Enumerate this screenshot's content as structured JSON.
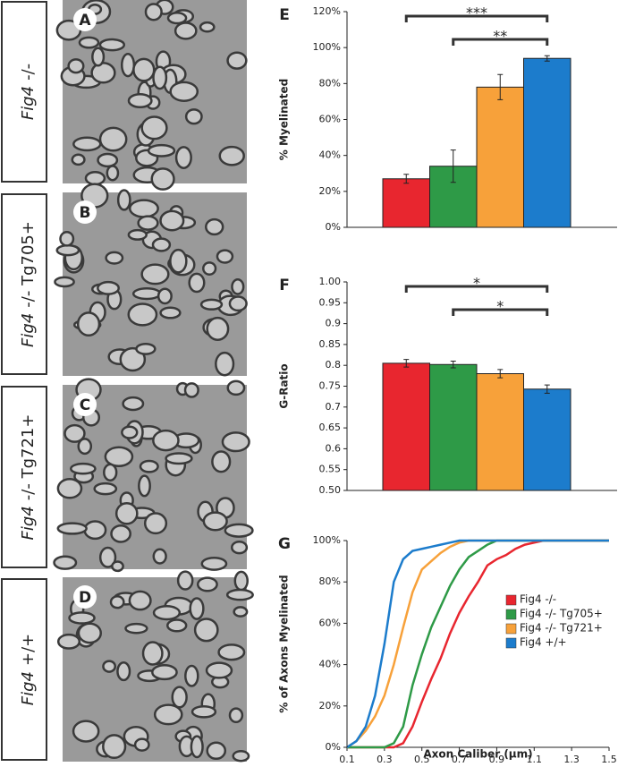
{
  "panels": [
    {
      "letter": "A",
      "gene": "Fig4",
      "genotype": "-/-"
    },
    {
      "letter": "B",
      "gene": "Fig4",
      "genotype": "-/- Tg705+"
    },
    {
      "letter": "C",
      "gene": "Fig4",
      "genotype": "-/- Tg721+"
    },
    {
      "letter": "D",
      "gene": "Fig4",
      "genotype": "+/+"
    }
  ],
  "chart_data": [
    {
      "type": "bar",
      "panel_label": "E",
      "ylabel": "% Myelinated",
      "categories": [
        null,
        null,
        null,
        null
      ],
      "values": [
        27,
        34,
        78,
        94
      ],
      "errors": [
        2.5,
        9,
        7,
        1.5
      ],
      "colors": [
        "#e8262f",
        "#2e9a47",
        "#f7a13a",
        "#1c7ccc"
      ],
      "ylim": [
        0,
        120
      ],
      "yticks": [
        {
          "value": 0,
          "label": "0%"
        },
        {
          "value": 20,
          "label": "20%"
        },
        {
          "value": 40,
          "label": "40%"
        },
        {
          "value": 60,
          "label": "60%"
        },
        {
          "value": 80,
          "label": "80%"
        },
        {
          "value": 100,
          "label": "100%"
        },
        {
          "value": 120,
          "label": "120%"
        }
      ],
      "annotations": [
        {
          "text": "***",
          "from": 0,
          "to": 3
        },
        {
          "text": "**",
          "from": 1,
          "to": 3
        }
      ]
    },
    {
      "type": "bar",
      "panel_label": "F",
      "ylabel": "G-Ratio",
      "categories": [
        null,
        null,
        null,
        null
      ],
      "values": [
        0.805,
        0.802,
        0.78,
        0.743
      ],
      "errors": [
        0.009,
        0.008,
        0.01,
        0.01
      ],
      "colors": [
        "#e8262f",
        "#2e9a47",
        "#f7a13a",
        "#1c7ccc"
      ],
      "ylim": [
        0.5,
        1.0
      ],
      "yticks": [
        {
          "value": 0.5,
          "label": "0.50"
        },
        0.55,
        0.6,
        0.65,
        0.7,
        0.75,
        0.8,
        0.85,
        0.9,
        0.95,
        {
          "value": 1.0,
          "label": "1.00"
        }
      ],
      "annotations": [
        {
          "text": "*",
          "from": 0,
          "to": 3
        },
        {
          "text": "*",
          "from": 1,
          "to": 3
        }
      ]
    },
    {
      "type": "line",
      "panel_label": "G",
      "ylabel": "% of Axons Myelinated",
      "xlabel": "Axon Caliber (μm)",
      "x": [
        0.1,
        0.15,
        0.2,
        0.25,
        0.3,
        0.35,
        0.4,
        0.45,
        0.5,
        0.55,
        0.6,
        0.65,
        0.7,
        0.75,
        0.8,
        0.85,
        0.9,
        0.95,
        1.0,
        1.05,
        1.1,
        1.15,
        1.2,
        1.25,
        1.3,
        1.35,
        1.4,
        1.45,
        1.5
      ],
      "series": [
        {
          "name": "Fig4 -/-",
          "color": "#e8262f",
          "values": [
            0,
            0,
            0,
            0,
            0,
            0,
            2,
            10,
            22,
            33,
            43,
            55,
            65,
            73,
            80,
            88,
            91,
            93,
            96,
            98,
            99,
            100,
            100,
            100,
            100,
            100,
            100,
            100,
            100
          ]
        },
        {
          "name": "Fig4 -/- Tg705+",
          "color": "#2e9a47",
          "values": [
            0,
            0,
            0,
            0,
            0,
            2,
            10,
            30,
            45,
            58,
            68,
            78,
            86,
            92,
            95,
            98,
            100,
            100,
            100,
            100,
            100,
            100,
            100,
            100,
            100,
            100,
            100,
            100,
            100
          ]
        },
        {
          "name": "Fig4 -/- Tg721+",
          "color": "#f7a13a",
          "values": [
            0,
            3,
            8,
            15,
            25,
            40,
            58,
            75,
            86,
            90,
            94,
            97,
            99,
            100,
            100,
            100,
            100,
            100,
            100,
            100,
            100,
            100,
            100,
            100,
            100,
            100,
            100,
            100,
            100
          ]
        },
        {
          "name": "Fig4 +/+",
          "color": "#1c7ccc",
          "values": [
            0,
            3,
            10,
            25,
            50,
            80,
            91,
            95,
            96,
            97,
            98,
            99,
            100,
            100,
            100,
            100,
            100,
            100,
            100,
            100,
            100,
            100,
            100,
            100,
            100,
            100,
            100,
            100,
            100
          ]
        }
      ],
      "xlim": [
        0.1,
        1.5
      ],
      "xticks": [
        0.1,
        0.3,
        0.5,
        0.7,
        0.9,
        1.1,
        1.3,
        1.5
      ],
      "ylim": [
        0,
        100
      ],
      "yticks": [
        {
          "value": 0,
          "label": "0%"
        },
        {
          "value": 20,
          "label": "20%"
        },
        {
          "value": 40,
          "label": "40%"
        },
        {
          "value": 60,
          "label": "60%"
        },
        {
          "value": 80,
          "label": "80%"
        },
        {
          "value": 100,
          "label": "100%"
        }
      ]
    }
  ]
}
